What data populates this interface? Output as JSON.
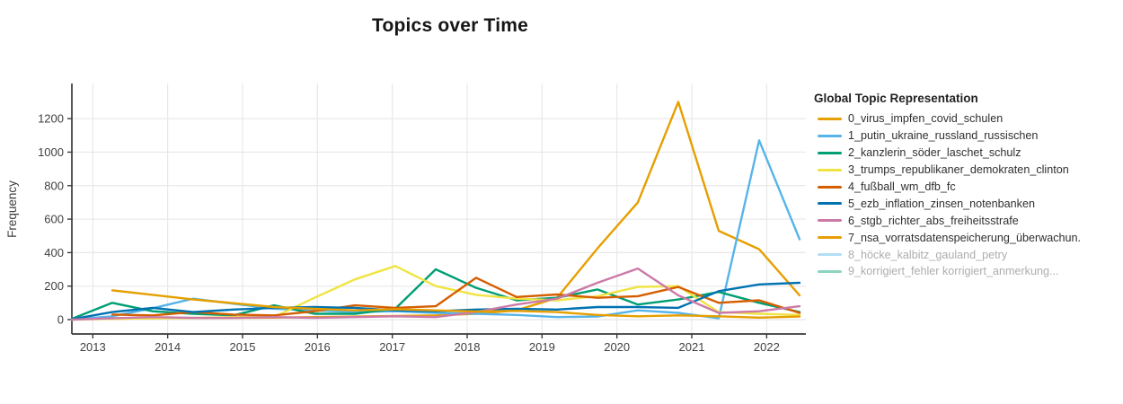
{
  "title": "Topics over Time",
  "y_axis": {
    "label": "Frequency",
    "ticks": [
      0,
      200,
      400,
      600,
      800,
      1000,
      1200
    ]
  },
  "x_axis": {
    "ticks": [
      2013,
      2014,
      2015,
      2016,
      2017,
      2018,
      2019,
      2020,
      2021,
      2022
    ]
  },
  "legend": {
    "title": "Global Topic Representation",
    "items": [
      {
        "label": "0_virus_impfen_covid_schulen",
        "color": "#E69F00",
        "dimmed": false
      },
      {
        "label": "1_putin_ukraine_russland_russischen",
        "color": "#56B4E9",
        "dimmed": false
      },
      {
        "label": "2_kanzlerin_söder_laschet_schulz",
        "color": "#009E73",
        "dimmed": false
      },
      {
        "label": "3_trumps_republikaner_demokraten_clinton",
        "color": "#F0E442",
        "dimmed": false
      },
      {
        "label": "4_fußball_wm_dfb_fc",
        "color": "#D55E00",
        "dimmed": false
      },
      {
        "label": "5_ezb_inflation_zinsen_notenbanken",
        "color": "#0072B2",
        "dimmed": false
      },
      {
        "label": "6_stgb_richter_abs_freiheitsstrafe",
        "color": "#CC79A7",
        "dimmed": false
      },
      {
        "label": "7_nsa_vorratsdatenspeicherung_überwachun.",
        "color": "#E69F00",
        "dimmed": false
      },
      {
        "label": "8_höcke_kalbitz_gauland_petry",
        "color": "#56B4E9",
        "dimmed": true
      },
      {
        "label": "9_korrigiert_fehler korrigiert_anmerkung...",
        "color": "#009E73",
        "dimmed": true
      }
    ]
  },
  "chart_data": {
    "type": "line",
    "title": "Topics over Time",
    "xlabel": "",
    "ylabel": "Frequency",
    "xlim": [
      2012.7,
      2022.6
    ],
    "ylim": [
      -85,
      1390
    ],
    "grid": true,
    "legend_position": "right",
    "series": [
      {
        "name": "0_virus_impfen_covid_schulen",
        "color": "#E69F00",
        "x": [
          2012.72,
          2013.26,
          2013.8,
          2014.34,
          2014.88,
          2015.42,
          2015.96,
          2016.5,
          2017.04,
          2017.58,
          2018.12,
          2018.66,
          2019.2,
          2019.74,
          2020.28,
          2020.82,
          2021.36,
          2021.9,
          2022.44
        ],
        "values": [
          3,
          5,
          8,
          10,
          10,
          12,
          15,
          18,
          22,
          25,
          35,
          55,
          130,
          425,
          700,
          1300,
          530,
          420,
          145
        ]
      },
      {
        "name": "1_putin_ukraine_russland_russischen",
        "color": "#56B4E9",
        "x": [
          2012.72,
          2013.26,
          2013.8,
          2014.34,
          2014.88,
          2015.42,
          2015.96,
          2016.5,
          2017.04,
          2017.58,
          2018.12,
          2018.66,
          2019.2,
          2019.74,
          2020.28,
          2020.82,
          2021.36,
          2021.9,
          2022.44
        ],
        "values": [
          0,
          20,
          68,
          125,
          95,
          65,
          55,
          45,
          50,
          40,
          35,
          28,
          15,
          18,
          55,
          40,
          8,
          1070,
          480
        ]
      },
      {
        "name": "2_kanzlerin_söder_laschet_schulz",
        "color": "#009E73",
        "x": [
          2012.72,
          2013.26,
          2013.8,
          2014.34,
          2014.88,
          2015.42,
          2015.96,
          2016.5,
          2017.04,
          2017.58,
          2018.12,
          2018.66,
          2019.2,
          2019.74,
          2020.28,
          2020.82,
          2021.36,
          2021.9,
          2022.44
        ],
        "values": [
          5,
          100,
          50,
          35,
          25,
          85,
          35,
          35,
          65,
          300,
          190,
          115,
          130,
          180,
          90,
          120,
          165,
          100,
          45
        ]
      },
      {
        "name": "3_trumps_republikaner_demokraten_clinton",
        "color": "#F0E442",
        "x": [
          2012.72,
          2013.26,
          2013.8,
          2014.34,
          2014.88,
          2015.42,
          2015.96,
          2016.5,
          2017.04,
          2017.58,
          2018.12,
          2018.66,
          2019.2,
          2019.74,
          2020.28,
          2020.82,
          2021.36,
          2021.9,
          2022.44
        ],
        "values": [
          0,
          5,
          8,
          10,
          15,
          15,
          130,
          240,
          320,
          200,
          148,
          125,
          115,
          140,
          195,
          200,
          45,
          35,
          28
        ]
      },
      {
        "name": "4_fußball_wm_dfb_fc",
        "color": "#D55E00",
        "x": [
          2013.26,
          2013.8,
          2014.34,
          2014.88,
          2015.42,
          2015.96,
          2016.5,
          2017.04,
          2017.58,
          2018.12,
          2018.66,
          2019.2,
          2019.74,
          2020.28,
          2020.82,
          2021.36,
          2021.9,
          2022.44
        ],
        "values": [
          30,
          25,
          45,
          30,
          25,
          50,
          85,
          70,
          80,
          250,
          135,
          150,
          130,
          140,
          195,
          100,
          115,
          40
        ]
      },
      {
        "name": "5_ezb_inflation_zinsen_notenbanken",
        "color": "#0072B2",
        "x": [
          2012.72,
          2013.26,
          2013.8,
          2014.34,
          2014.88,
          2015.42,
          2015.96,
          2016.5,
          2017.04,
          2017.58,
          2018.12,
          2018.66,
          2019.2,
          2019.74,
          2020.28,
          2020.82,
          2021.36,
          2021.9,
          2022.44
        ],
        "values": [
          2,
          45,
          70,
          45,
          60,
          70,
          75,
          70,
          55,
          50,
          60,
          65,
          60,
          75,
          75,
          70,
          170,
          210,
          220
        ]
      },
      {
        "name": "6_stgb_richter_abs_freiheitsstrafe",
        "color": "#CC79A7",
        "x": [
          2012.72,
          2013.26,
          2013.8,
          2014.34,
          2014.88,
          2015.42,
          2015.96,
          2016.5,
          2017.04,
          2017.58,
          2018.12,
          2018.66,
          2019.2,
          2019.74,
          2020.28,
          2020.82,
          2021.36,
          2021.9,
          2022.44
        ],
        "values": [
          0,
          8,
          15,
          10,
          10,
          15,
          10,
          15,
          20,
          15,
          45,
          90,
          125,
          220,
          305,
          145,
          40,
          50,
          80
        ]
      },
      {
        "name": "7_nsa_vorratsdatenspeicherung_überwachun.",
        "color": "#E69F00",
        "x": [
          2013.26,
          2013.8,
          2014.34,
          2014.88,
          2015.42,
          2015.96,
          2016.5,
          2017.04,
          2017.58,
          2018.12,
          2018.66,
          2019.2,
          2019.74,
          2020.28,
          2020.82,
          2021.36,
          2021.9,
          2022.44
        ],
        "values": [
          175,
          148,
          120,
          98,
          75,
          65,
          55,
          62,
          55,
          48,
          52,
          45,
          28,
          20,
          25,
          20,
          12,
          18
        ]
      }
    ]
  }
}
